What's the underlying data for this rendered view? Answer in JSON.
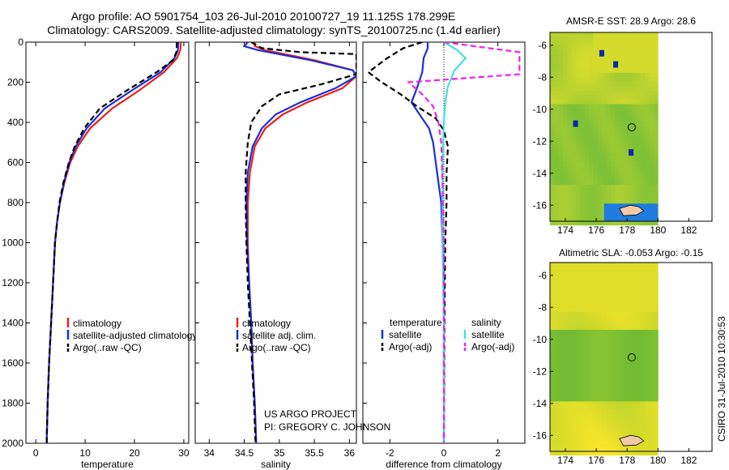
{
  "header": {
    "line1": "Argo profile: AO 5901754_103 26-Jul-2010 20100727_19 11.125S 178.299E",
    "line2": "Climatology: CARS2009. Satellite-adjusted climatology: synTS_20100725.nc (1.4d earlier)"
  },
  "side_stamp": "CSIRO 31-Jul-2010 10:30:53",
  "footer_note": {
    "line1": "US ARGO PROJECT",
    "line2": "PI: GREGORY C. JOHNSON"
  },
  "colors": {
    "climatology": "#e8201c",
    "satellite": "#1a2fd8",
    "argo": "#000000",
    "satellite_s": "#40e0e0",
    "argo_adj": "#ee22ee"
  },
  "chart_data": [
    {
      "type": "line",
      "id": "temperature",
      "xlabel": "temperature",
      "ylabel": "",
      "ylim": [
        2000,
        0
      ],
      "xlim": [
        -2,
        31
      ],
      "xticks": [
        0,
        10,
        20,
        30
      ],
      "yticks": [
        0,
        200,
        400,
        600,
        800,
        1000,
        1200,
        1400,
        1600,
        1800,
        2000
      ],
      "legend": {
        "placement": "lower-left",
        "labels": [
          "climatology",
          "satellite-adjusted climatology",
          "Argo(..raw -QC)"
        ]
      },
      "series": [
        {
          "name": "climatology",
          "style": "solid",
          "color": "climatology",
          "points": [
            [
              29.4,
              0
            ],
            [
              29.3,
              40
            ],
            [
              28.6,
              80
            ],
            [
              26,
              150
            ],
            [
              21,
              240
            ],
            [
              15.5,
              330
            ],
            [
              11,
              430
            ],
            [
              8.5,
              520
            ],
            [
              7,
              600
            ],
            [
              5.8,
              700
            ],
            [
              4.9,
              800
            ],
            [
              4.3,
              900
            ],
            [
              3.9,
              1000
            ],
            [
              3.5,
              1200
            ],
            [
              3.1,
              1400
            ],
            [
              2.7,
              1600
            ],
            [
              2.4,
              1800
            ],
            [
              2.2,
              2000
            ]
          ]
        },
        {
          "name": "satellite-adjusted climatology",
          "style": "solid",
          "color": "satellite",
          "points": [
            [
              28.9,
              0
            ],
            [
              28.8,
              40
            ],
            [
              28.1,
              80
            ],
            [
              25.3,
              150
            ],
            [
              19.5,
              240
            ],
            [
              14,
              330
            ],
            [
              10.3,
              430
            ],
            [
              8.1,
              520
            ],
            [
              6.8,
              600
            ],
            [
              5.7,
              700
            ],
            [
              4.9,
              800
            ],
            [
              4.3,
              900
            ],
            [
              3.9,
              1000
            ],
            [
              3.5,
              1200
            ],
            [
              3.1,
              1400
            ],
            [
              2.7,
              1600
            ],
            [
              2.4,
              1800
            ],
            [
              2.2,
              2000
            ]
          ]
        },
        {
          "name": "Argo(..raw -QC)",
          "style": "dashed",
          "color": "argo",
          "points": [
            [
              28.6,
              0
            ],
            [
              28.5,
              50
            ],
            [
              27.8,
              90
            ],
            [
              24.5,
              150
            ],
            [
              18.5,
              240
            ],
            [
              13,
              330
            ],
            [
              9.8,
              430
            ],
            [
              7.9,
              520
            ],
            [
              6.7,
              600
            ],
            [
              5.6,
              700
            ],
            [
              4.8,
              800
            ],
            [
              4.3,
              900
            ],
            [
              3.9,
              1000
            ],
            [
              3.5,
              1200
            ],
            [
              3.1,
              1400
            ],
            [
              2.7,
              1600
            ],
            [
              2.4,
              1800
            ],
            [
              2.2,
              2000
            ]
          ]
        }
      ]
    },
    {
      "type": "line",
      "id": "salinity",
      "xlabel": "salinity",
      "ylim": [
        2000,
        0
      ],
      "xlim": [
        33.8,
        36.1
      ],
      "xticks": [
        34,
        34.5,
        35,
        35.5,
        36
      ],
      "legend": {
        "placement": "lower-left",
        "labels": [
          "climatology",
          "satellite adj. clim.",
          "Argo(..raw -QC)"
        ]
      },
      "series": [
        {
          "name": "climatology",
          "style": "solid",
          "color": "climatology",
          "points": [
            [
              34.65,
              0
            ],
            [
              34.65,
              20
            ],
            [
              34.8,
              40
            ],
            [
              35.5,
              90
            ],
            [
              36.05,
              140
            ],
            [
              36.1,
              170
            ],
            [
              35.9,
              230
            ],
            [
              35.4,
              300
            ],
            [
              35.05,
              360
            ],
            [
              34.8,
              430
            ],
            [
              34.65,
              520
            ],
            [
              34.58,
              650
            ],
            [
              34.55,
              800
            ],
            [
              34.55,
              1000
            ],
            [
              34.57,
              1200
            ],
            [
              34.6,
              1400
            ],
            [
              34.62,
              1600
            ],
            [
              34.65,
              1800
            ],
            [
              34.67,
              2000
            ]
          ]
        },
        {
          "name": "satellite adj. clim.",
          "style": "solid",
          "color": "satellite",
          "points": [
            [
              34.55,
              0
            ],
            [
              34.5,
              20
            ],
            [
              34.7,
              40
            ],
            [
              35.45,
              90
            ],
            [
              36.05,
              140
            ],
            [
              36.1,
              170
            ],
            [
              35.8,
              230
            ],
            [
              35.3,
              300
            ],
            [
              34.95,
              360
            ],
            [
              34.75,
              430
            ],
            [
              34.62,
              520
            ],
            [
              34.55,
              650
            ],
            [
              34.53,
              800
            ],
            [
              34.54,
              1000
            ],
            [
              34.57,
              1200
            ],
            [
              34.6,
              1400
            ],
            [
              34.62,
              1600
            ],
            [
              34.65,
              1800
            ],
            [
              34.67,
              2000
            ]
          ]
        },
        {
          "name": "Argo(..raw -QC)",
          "style": "dashed",
          "color": "argo",
          "points": [
            [
              34.6,
              0
            ],
            [
              34.75,
              30
            ],
            [
              35.3,
              50
            ],
            [
              36.1,
              60
            ],
            [
              36.1,
              120
            ],
            [
              36.1,
              160
            ],
            [
              35.6,
              210
            ],
            [
              35.0,
              260
            ],
            [
              34.75,
              320
            ],
            [
              34.6,
              400
            ],
            [
              34.55,
              500
            ],
            [
              34.52,
              650
            ],
            [
              34.52,
              800
            ],
            [
              34.53,
              1000
            ],
            [
              34.55,
              1200
            ],
            [
              34.58,
              1400
            ],
            [
              34.61,
              1600
            ],
            [
              34.64,
              1800
            ],
            [
              34.66,
              2000
            ]
          ]
        }
      ]
    },
    {
      "type": "line",
      "id": "difference",
      "xlabel": "difference from climatology",
      "ylim": [
        2000,
        0
      ],
      "xlim": [
        -3,
        3
      ],
      "xticks": [
        -2,
        0,
        2
      ],
      "legend": {
        "placement": "lower-left",
        "headers": [
          "temperature",
          "salinity"
        ],
        "labels": [
          "satellite",
          "Argo(-adj)",
          "satellite",
          "Argo(-adj)"
        ]
      },
      "series": [
        {
          "name": "satellite",
          "group": "temperature",
          "style": "solid",
          "color": "satellite",
          "points": [
            [
              -0.6,
              0
            ],
            [
              -0.6,
              30
            ],
            [
              -0.75,
              80
            ],
            [
              -0.8,
              150
            ],
            [
              -1.0,
              230
            ],
            [
              -1.2,
              300
            ],
            [
              -0.8,
              380
            ],
            [
              -0.55,
              430
            ],
            [
              -0.4,
              500
            ],
            [
              -0.3,
              600
            ],
            [
              -0.2,
              700
            ],
            [
              -0.1,
              800
            ],
            [
              -0.05,
              1000
            ],
            [
              0,
              1200
            ],
            [
              0,
              1600
            ],
            [
              0,
              2000
            ]
          ]
        },
        {
          "name": "Argo(-adj)",
          "group": "temperature",
          "style": "dashed",
          "color": "argo",
          "points": [
            [
              -0.8,
              0
            ],
            [
              -1.5,
              30
            ],
            [
              -2.1,
              80
            ],
            [
              -2.8,
              150
            ],
            [
              -2.3,
              200
            ],
            [
              -1.6,
              260
            ],
            [
              -1.0,
              320
            ],
            [
              -0.3,
              380
            ],
            [
              0,
              440
            ],
            [
              0.15,
              520
            ],
            [
              0.1,
              650
            ],
            [
              0.1,
              800
            ],
            [
              0.05,
              1000
            ],
            [
              0.02,
              1400
            ],
            [
              0,
              2000
            ]
          ]
        },
        {
          "name": "satellite",
          "group": "salinity",
          "style": "solid",
          "color": "satellite_s",
          "points": [
            [
              0,
              0
            ],
            [
              0.5,
              40
            ],
            [
              0.8,
              80
            ],
            [
              0.4,
              140
            ],
            [
              0.15,
              220
            ],
            [
              0.05,
              300
            ],
            [
              0,
              400
            ],
            [
              -0.05,
              600
            ],
            [
              -0.05,
              1000
            ],
            [
              0,
              1400
            ],
            [
              0,
              2000
            ]
          ]
        },
        {
          "name": "Argo(-adj)",
          "group": "salinity",
          "style": "dashed",
          "color": "argo_adj",
          "points": [
            [
              0,
              0
            ],
            [
              2.8,
              50
            ],
            [
              2.8,
              100
            ],
            [
              2.8,
              160
            ],
            [
              -1.3,
              200
            ],
            [
              -0.8,
              260
            ],
            [
              -0.4,
              320
            ],
            [
              -0.2,
              400
            ],
            [
              -0.1,
              500
            ],
            [
              -0.05,
              700
            ],
            [
              0,
              1000
            ],
            [
              0,
              2000
            ]
          ]
        }
      ]
    },
    {
      "type": "heatmap",
      "id": "sst-map",
      "title": "AMSR-E SST: 28.9 Argo: 28.6",
      "xlim": [
        173,
        183.5
      ],
      "ylim": [
        -17,
        -5.2
      ],
      "xticks": [
        174,
        176,
        178,
        180,
        182
      ],
      "yticks": [
        -6,
        -8,
        -10,
        -12,
        -14,
        -16
      ],
      "data_extent_lon": [
        173,
        180
      ],
      "marker": {
        "lon": 178.299,
        "lat": -11.125
      }
    },
    {
      "type": "heatmap",
      "id": "sla-map",
      "title": "Altimetric SLA: -0.053 Argo: -0.15",
      "xlim": [
        173,
        183.5
      ],
      "ylim": [
        -17,
        -5.2
      ],
      "xticks": [
        174,
        176,
        178,
        180,
        182
      ],
      "yticks": [
        -6,
        -8,
        -10,
        -12,
        -14,
        -16
      ],
      "data_extent_lon": [
        173,
        180
      ],
      "marker": {
        "lon": 178.299,
        "lat": -11.125
      }
    }
  ]
}
